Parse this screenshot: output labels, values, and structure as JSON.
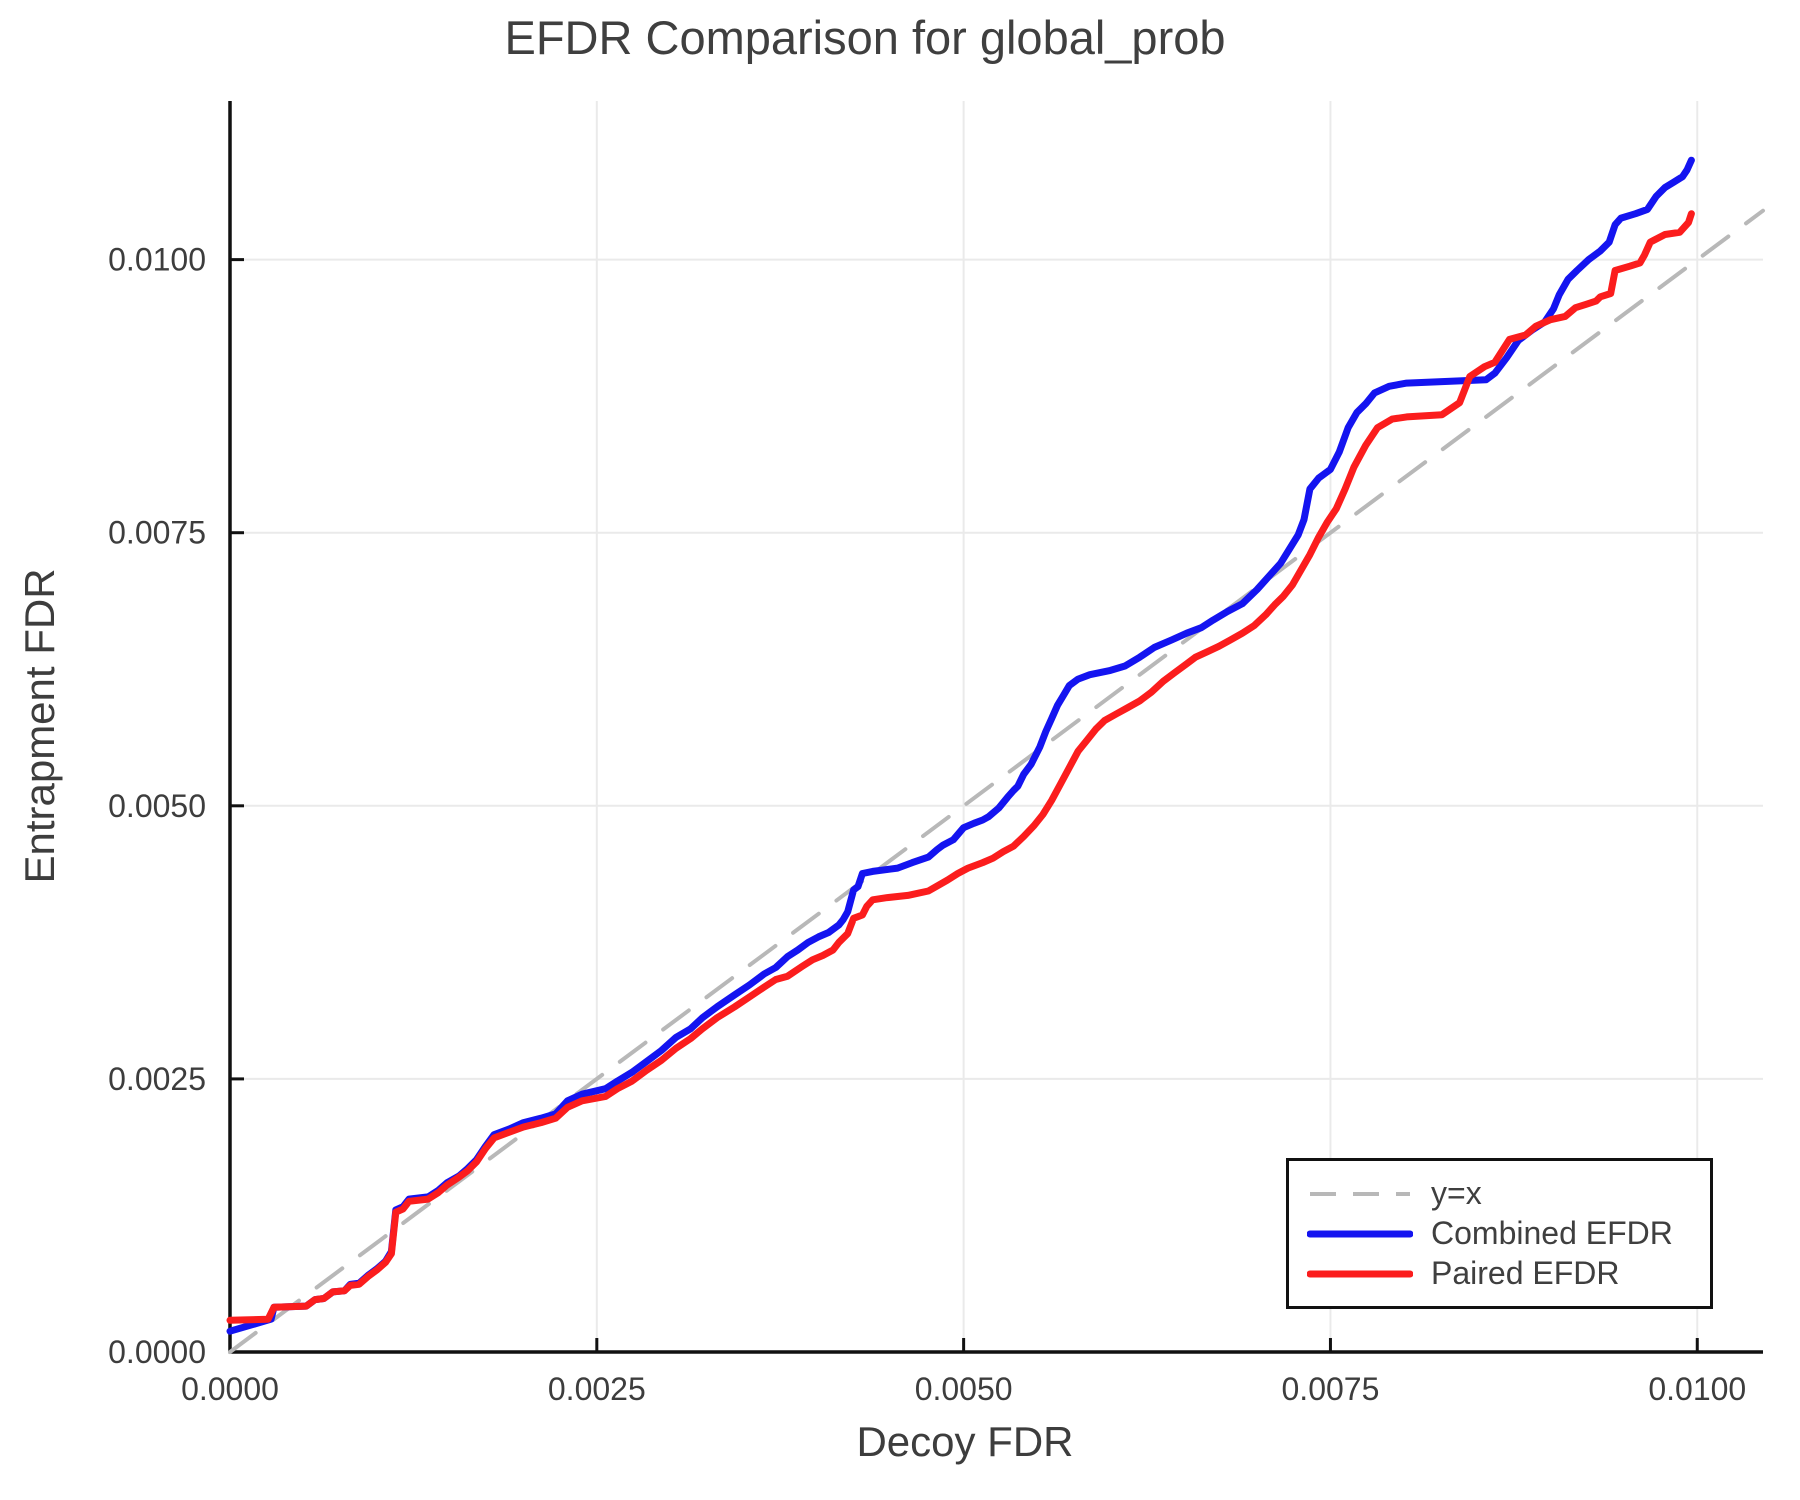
{
  "title": "EFDR Comparison for global_prob",
  "chart_data": {
    "type": "line",
    "title": "EFDR Comparison for global_prob",
    "xlabel": "Decoy FDR",
    "ylabel": "Entrapment FDR",
    "xlim": [
      0,
      0.010448
    ],
    "ylim": [
      0,
      0.011452
    ],
    "grid": true,
    "legend_position": "lower right",
    "x_ticks": {
      "values": [
        0,
        0.0025,
        0.005,
        0.0075,
        0.01
      ],
      "labels": [
        "0.0000",
        "0.0025",
        "0.0050",
        "0.0075",
        "0.0100"
      ]
    },
    "y_ticks": {
      "values": [
        0,
        0.0025,
        0.005,
        0.0075,
        0.01
      ],
      "labels": [
        "0.0000",
        "0.0025",
        "0.0050",
        "0.0075",
        "0.0100"
      ]
    },
    "colors": {
      "identity": "#b8b8b8",
      "combined": "#1414f0",
      "paired": "#fb1d1d",
      "grid": "#eaeaea",
      "spine": "#111111",
      "tick_text": "#3d3d3d"
    },
    "series": [
      {
        "name": "y=x",
        "style": "dashed",
        "color": "#b8b8b8",
        "points": [
          [
            0,
            0
          ],
          [
            0.010448,
            0.010448
          ]
        ]
      },
      {
        "name": "Combined EFDR",
        "style": "solid",
        "color": "#1414f0",
        "points": [
          [
            0.0,
            0.00019
          ],
          [
            0.00028,
            0.0003
          ],
          [
            0.0003,
            0.00041
          ],
          [
            0.00052,
            0.00042
          ],
          [
            0.00058,
            0.00048
          ],
          [
            0.00064,
            0.00049
          ],
          [
            0.0007,
            0.00055
          ],
          [
            0.00078,
            0.00056
          ],
          [
            0.00082,
            0.00062
          ],
          [
            0.00088,
            0.00063
          ],
          [
            0.00094,
            0.0007
          ],
          [
            0.001,
            0.00076
          ],
          [
            0.00106,
            0.00083
          ],
          [
            0.0011,
            0.00092
          ],
          [
            0.00113,
            0.0013
          ],
          [
            0.00118,
            0.00133
          ],
          [
            0.00122,
            0.0014
          ],
          [
            0.00135,
            0.00142
          ],
          [
            0.00142,
            0.00148
          ],
          [
            0.00148,
            0.00155
          ],
          [
            0.00156,
            0.00161
          ],
          [
            0.00162,
            0.00168
          ],
          [
            0.00168,
            0.00176
          ],
          [
            0.00174,
            0.00188
          ],
          [
            0.0018,
            0.00199
          ],
          [
            0.0019,
            0.00204
          ],
          [
            0.002,
            0.0021
          ],
          [
            0.00212,
            0.00214
          ],
          [
            0.00222,
            0.00218
          ],
          [
            0.0023,
            0.0023
          ],
          [
            0.0024,
            0.00236
          ],
          [
            0.00256,
            0.00241
          ],
          [
            0.00264,
            0.00248
          ],
          [
            0.00274,
            0.00256
          ],
          [
            0.00284,
            0.00266
          ],
          [
            0.00294,
            0.00276
          ],
          [
            0.00304,
            0.00288
          ],
          [
            0.00314,
            0.00296
          ],
          [
            0.00322,
            0.00306
          ],
          [
            0.00332,
            0.00316
          ],
          [
            0.00344,
            0.00327
          ],
          [
            0.00354,
            0.00336
          ],
          [
            0.00364,
            0.00346
          ],
          [
            0.00372,
            0.00352
          ],
          [
            0.0038,
            0.00362
          ],
          [
            0.00387,
            0.00368
          ],
          [
            0.00394,
            0.00375
          ],
          [
            0.00401,
            0.0038
          ],
          [
            0.00408,
            0.00384
          ],
          [
            0.00415,
            0.00391
          ],
          [
            0.00418,
            0.00396
          ],
          [
            0.00421,
            0.00403
          ],
          [
            0.00425,
            0.00423
          ],
          [
            0.00428,
            0.00426
          ],
          [
            0.00431,
            0.00438
          ],
          [
            0.00438,
            0.0044
          ],
          [
            0.00455,
            0.00443
          ],
          [
            0.00465,
            0.00448
          ],
          [
            0.00476,
            0.00453
          ],
          [
            0.00482,
            0.0046
          ],
          [
            0.00486,
            0.00464
          ],
          [
            0.00493,
            0.00469
          ],
          [
            0.005,
            0.0048
          ],
          [
            0.00507,
            0.00484
          ],
          [
            0.00513,
            0.00487
          ],
          [
            0.00517,
            0.0049
          ],
          [
            0.00524,
            0.00498
          ],
          [
            0.0053,
            0.00508
          ],
          [
            0.00534,
            0.00514
          ],
          [
            0.00537,
            0.00518
          ],
          [
            0.00541,
            0.00529
          ],
          [
            0.00546,
            0.00538
          ],
          [
            0.00552,
            0.00554
          ],
          [
            0.00556,
            0.00568
          ],
          [
            0.0056,
            0.0058
          ],
          [
            0.00564,
            0.00592
          ],
          [
            0.00568,
            0.00601
          ],
          [
            0.00572,
            0.0061
          ],
          [
            0.00578,
            0.00616
          ],
          [
            0.00586,
            0.0062
          ],
          [
            0.006,
            0.00624
          ],
          [
            0.0061,
            0.00628
          ],
          [
            0.0062,
            0.00636
          ],
          [
            0.0063,
            0.00645
          ],
          [
            0.00642,
            0.00652
          ],
          [
            0.00652,
            0.00658
          ],
          [
            0.00662,
            0.00663
          ],
          [
            0.0067,
            0.0067
          ],
          [
            0.0068,
            0.00678
          ],
          [
            0.0069,
            0.00685
          ],
          [
            0.007,
            0.00698
          ],
          [
            0.00708,
            0.0071
          ],
          [
            0.00716,
            0.00722
          ],
          [
            0.00722,
            0.00735
          ],
          [
            0.00728,
            0.00748
          ],
          [
            0.00732,
            0.00762
          ],
          [
            0.00736,
            0.0079
          ],
          [
            0.00742,
            0.008
          ],
          [
            0.0075,
            0.00808
          ],
          [
            0.00756,
            0.00824
          ],
          [
            0.00762,
            0.00846
          ],
          [
            0.00768,
            0.0086
          ],
          [
            0.00774,
            0.00868
          ],
          [
            0.0078,
            0.00878
          ],
          [
            0.0079,
            0.00884
          ],
          [
            0.00802,
            0.00887
          ],
          [
            0.00856,
            0.0089
          ],
          [
            0.00862,
            0.00896
          ],
          [
            0.0087,
            0.0091
          ],
          [
            0.00878,
            0.00926
          ],
          [
            0.00888,
            0.00936
          ],
          [
            0.00896,
            0.00943
          ],
          [
            0.00902,
            0.00955
          ],
          [
            0.00906,
            0.00968
          ],
          [
            0.00912,
            0.00982
          ],
          [
            0.00918,
            0.0099
          ],
          [
            0.00926,
            0.01
          ],
          [
            0.00934,
            0.01008
          ],
          [
            0.0094,
            0.01016
          ],
          [
            0.00944,
            0.01032
          ],
          [
            0.00948,
            0.01038
          ],
          [
            0.00958,
            0.01042
          ],
          [
            0.00966,
            0.01046
          ],
          [
            0.00972,
            0.01058
          ],
          [
            0.00978,
            0.01066
          ],
          [
            0.00984,
            0.01071
          ],
          [
            0.0099,
            0.01076
          ],
          [
            0.00993,
            0.01082
          ],
          [
            0.00996,
            0.01091
          ]
        ]
      },
      {
        "name": "Paired EFDR",
        "style": "solid",
        "color": "#fb1d1d",
        "points": [
          [
            0.0,
            0.00029
          ],
          [
            0.00026,
            0.0003
          ],
          [
            0.0003,
            0.00041
          ],
          [
            0.00052,
            0.00042
          ],
          [
            0.00058,
            0.00048
          ],
          [
            0.00064,
            0.00049
          ],
          [
            0.0007,
            0.00055
          ],
          [
            0.00078,
            0.00056
          ],
          [
            0.00082,
            0.00061
          ],
          [
            0.00088,
            0.00062
          ],
          [
            0.00094,
            0.00069
          ],
          [
            0.001,
            0.00075
          ],
          [
            0.00106,
            0.00082
          ],
          [
            0.0011,
            0.0009
          ],
          [
            0.00113,
            0.00128
          ],
          [
            0.00118,
            0.00131
          ],
          [
            0.00122,
            0.00138
          ],
          [
            0.00135,
            0.0014
          ],
          [
            0.00142,
            0.00146
          ],
          [
            0.00148,
            0.00153
          ],
          [
            0.00156,
            0.0016
          ],
          [
            0.00162,
            0.00166
          ],
          [
            0.00168,
            0.00174
          ],
          [
            0.00174,
            0.00186
          ],
          [
            0.0018,
            0.00196
          ],
          [
            0.0019,
            0.00201
          ],
          [
            0.002,
            0.00206
          ],
          [
            0.00212,
            0.0021
          ],
          [
            0.00222,
            0.00214
          ],
          [
            0.0023,
            0.00224
          ],
          [
            0.0024,
            0.0023
          ],
          [
            0.00256,
            0.00234
          ],
          [
            0.00264,
            0.00241
          ],
          [
            0.00274,
            0.00248
          ],
          [
            0.00284,
            0.00258
          ],
          [
            0.00294,
            0.00267
          ],
          [
            0.00304,
            0.00278
          ],
          [
            0.00314,
            0.00287
          ],
          [
            0.00322,
            0.00296
          ],
          [
            0.00332,
            0.00306
          ],
          [
            0.00344,
            0.00316
          ],
          [
            0.00354,
            0.00325
          ],
          [
            0.00364,
            0.00334
          ],
          [
            0.00372,
            0.00341
          ],
          [
            0.0038,
            0.00344
          ],
          [
            0.0039,
            0.00353
          ],
          [
            0.00397,
            0.00359
          ],
          [
            0.00404,
            0.00363
          ],
          [
            0.00411,
            0.00368
          ],
          [
            0.00415,
            0.00375
          ],
          [
            0.00418,
            0.00379
          ],
          [
            0.00421,
            0.00383
          ],
          [
            0.00425,
            0.00397
          ],
          [
            0.00431,
            0.004
          ],
          [
            0.00434,
            0.00408
          ],
          [
            0.00438,
            0.00414
          ],
          [
            0.00448,
            0.00416
          ],
          [
            0.00462,
            0.00418
          ],
          [
            0.00476,
            0.00422
          ],
          [
            0.00489,
            0.00432
          ],
          [
            0.00496,
            0.00438
          ],
          [
            0.00503,
            0.00443
          ],
          [
            0.00513,
            0.00448
          ],
          [
            0.0052,
            0.00452
          ],
          [
            0.00527,
            0.00458
          ],
          [
            0.00534,
            0.00463
          ],
          [
            0.00541,
            0.00472
          ],
          [
            0.00548,
            0.00482
          ],
          [
            0.00554,
            0.00492
          ],
          [
            0.0056,
            0.00505
          ],
          [
            0.00566,
            0.0052
          ],
          [
            0.00572,
            0.00535
          ],
          [
            0.00578,
            0.0055
          ],
          [
            0.00584,
            0.0056
          ],
          [
            0.0059,
            0.0057
          ],
          [
            0.00596,
            0.00578
          ],
          [
            0.00604,
            0.00584
          ],
          [
            0.00612,
            0.0059
          ],
          [
            0.0062,
            0.00596
          ],
          [
            0.00628,
            0.00604
          ],
          [
            0.00636,
            0.00614
          ],
          [
            0.00644,
            0.00622
          ],
          [
            0.00652,
            0.0063
          ],
          [
            0.00658,
            0.00636
          ],
          [
            0.00666,
            0.00641
          ],
          [
            0.00674,
            0.00646
          ],
          [
            0.00682,
            0.00652
          ],
          [
            0.0069,
            0.00658
          ],
          [
            0.00698,
            0.00665
          ],
          [
            0.00706,
            0.00675
          ],
          [
            0.00712,
            0.00684
          ],
          [
            0.00718,
            0.00692
          ],
          [
            0.00724,
            0.00702
          ],
          [
            0.0073,
            0.00716
          ],
          [
            0.00736,
            0.0073
          ],
          [
            0.00742,
            0.00746
          ],
          [
            0.00748,
            0.0076
          ],
          [
            0.00754,
            0.00772
          ],
          [
            0.0076,
            0.0079
          ],
          [
            0.00766,
            0.0081
          ],
          [
            0.00774,
            0.0083
          ],
          [
            0.00782,
            0.00846
          ],
          [
            0.00792,
            0.00854
          ],
          [
            0.00802,
            0.00856
          ],
          [
            0.00826,
            0.00858
          ],
          [
            0.00838,
            0.00869
          ],
          [
            0.00845,
            0.00893
          ],
          [
            0.00855,
            0.00902
          ],
          [
            0.00862,
            0.00906
          ],
          [
            0.00872,
            0.00927
          ],
          [
            0.00883,
            0.00931
          ],
          [
            0.0089,
            0.00939
          ],
          [
            0.009,
            0.00945
          ],
          [
            0.0091,
            0.00948
          ],
          [
            0.00917,
            0.00956
          ],
          [
            0.00924,
            0.00959
          ],
          [
            0.00931,
            0.00962
          ],
          [
            0.00934,
            0.00966
          ],
          [
            0.00941,
            0.00969
          ],
          [
            0.00944,
            0.0099
          ],
          [
            0.00954,
            0.00994
          ],
          [
            0.00961,
            0.00997
          ],
          [
            0.00964,
            0.01004
          ],
          [
            0.00968,
            0.01016
          ],
          [
            0.00978,
            0.01023
          ],
          [
            0.00988,
            0.01025
          ],
          [
            0.00994,
            0.01034
          ],
          [
            0.00996,
            0.01042
          ]
        ]
      }
    ]
  },
  "legend": {
    "items": [
      {
        "label": "y=x"
      },
      {
        "label": "Combined EFDR"
      },
      {
        "label": "Paired EFDR"
      }
    ]
  }
}
